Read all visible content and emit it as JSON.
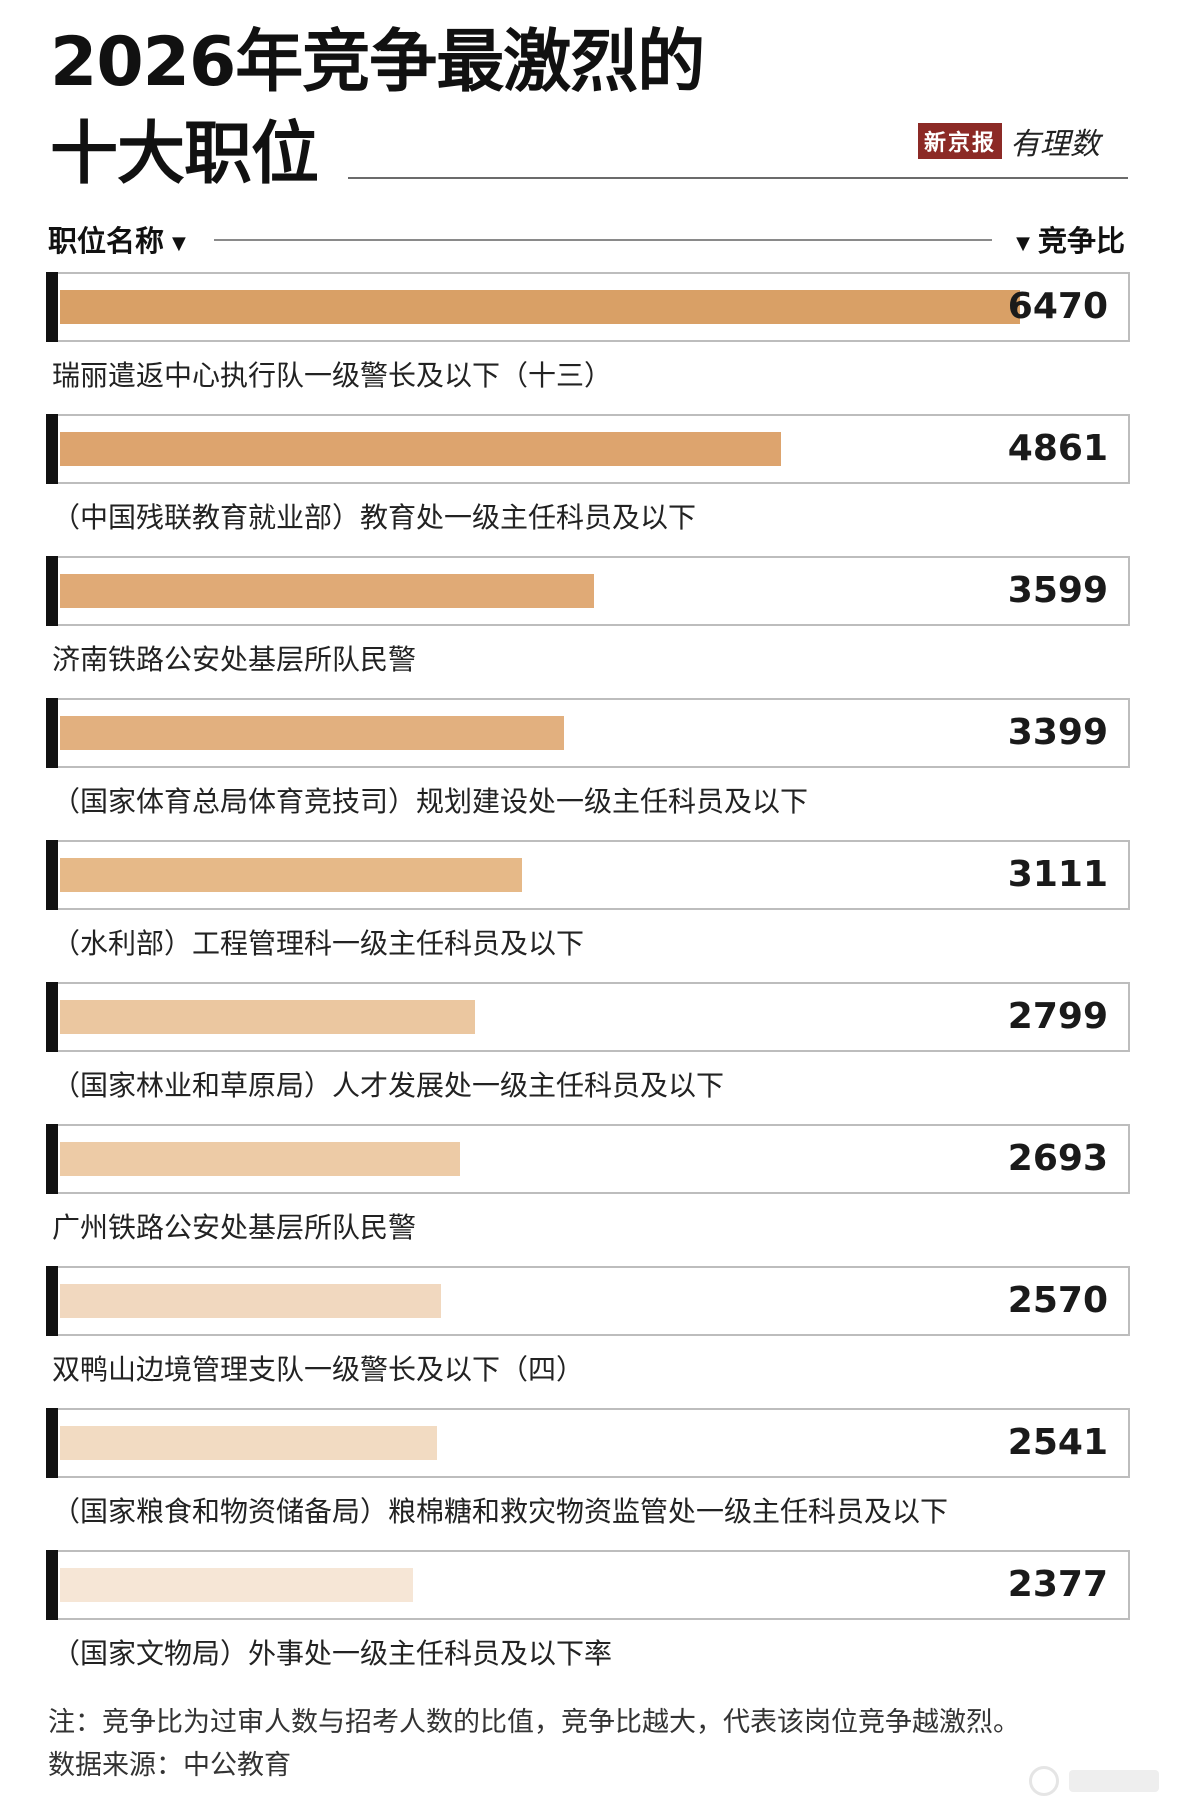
{
  "title_line1": "2026年竞争最激烈的",
  "title_line2": "十大职位",
  "brand": {
    "box": "新京报",
    "script": "有理数"
  },
  "header": {
    "left": "职位名称",
    "right": "竞争比"
  },
  "chart_data": {
    "type": "bar",
    "orientation": "horizontal",
    "title": "2026年竞争最激烈的十大职位",
    "xlabel": "竞争比",
    "ylabel": "职位名称",
    "categories": [
      "瑞丽遣返中心执行队一级警长及以下（十三）",
      "（中国残联教育就业部）教育处一级主任科员及以下",
      "济南铁路公安处基层所队民警",
      "（国家体育总局体育竞技司）规划建设处一级主任科员及以下",
      "（水利部）工程管理科一级主任科员及以下",
      "（国家林业和草原局）人才发展处一级主任科员及以下",
      "广州铁路公安处基层所队民警",
      "双鸭山边境管理支队一级警长及以下（四）",
      "（国家粮食和物资储备局）粮棉糖和救灾物资监管处一级主任科员及以下",
      "（国家文物局）外事处一级主任科员及以下率"
    ],
    "values": [
      6470,
      4861,
      3599,
      3399,
      3111,
      2799,
      2693,
      2570,
      2541,
      2377
    ],
    "colors": [
      "#d9a066",
      "#dda46e",
      "#e0aa76",
      "#e2b07f",
      "#e6b988",
      "#ebc7a0",
      "#edcba6",
      "#f1d8bf",
      "#f2dbc2",
      "#f6e6d6"
    ],
    "xlim": [
      0,
      6470
    ],
    "grid": false,
    "legend": "none"
  },
  "notes": {
    "line1": "注：竞争比为过审人数与招考人数的比值，竞争比越大，代表该岗位竞争越激烈。",
    "line2": "数据来源：中公教育"
  }
}
